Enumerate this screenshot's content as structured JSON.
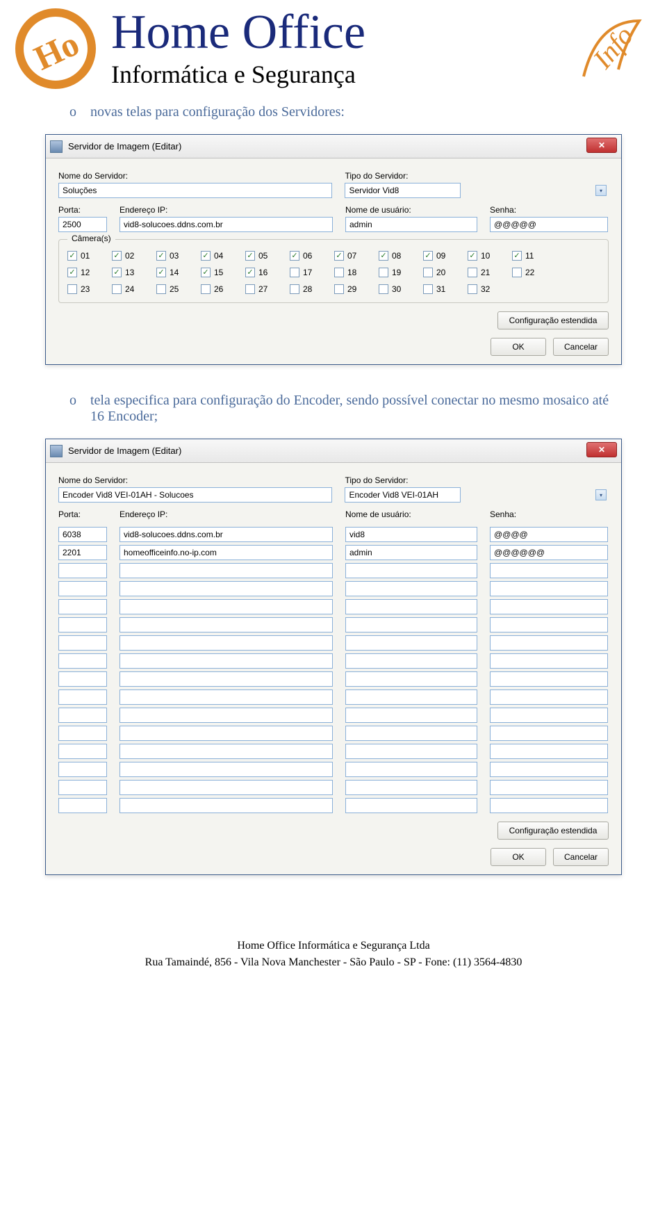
{
  "logo": {
    "main": "Home Office",
    "sub": "Informática e Segurança",
    "script": "Info",
    "circle_stroke": "#e08a2a",
    "circle_inner": "#ffffff",
    "main_color": "#1a2a7a"
  },
  "bullets": {
    "b1": "novas telas para configuração dos Servidores:",
    "b2": "tela especifica para configuração do Encoder, sendo possível conectar no mesmo mosaico até 16 Encoder;"
  },
  "dialog1": {
    "title": "Servidor de Imagem  (Editar)",
    "labels": {
      "nome": "Nome do Servidor:",
      "tipo": "Tipo do Servidor:",
      "porta": "Porta:",
      "ip": "Endereço IP:",
      "user": "Nome de usuário:",
      "senha": "Senha:",
      "cameras": "Câmera(s)"
    },
    "values": {
      "nome": "Soluções",
      "tipo": "Servidor Vid8",
      "porta": "2500",
      "ip": "vid8-solucoes.ddns.com.br",
      "user": "admin",
      "senha": "@@@@@"
    },
    "cameras": [
      {
        "n": "01",
        "c": true
      },
      {
        "n": "02",
        "c": true
      },
      {
        "n": "03",
        "c": true
      },
      {
        "n": "04",
        "c": true
      },
      {
        "n": "05",
        "c": true
      },
      {
        "n": "06",
        "c": true
      },
      {
        "n": "07",
        "c": true
      },
      {
        "n": "08",
        "c": true
      },
      {
        "n": "09",
        "c": true
      },
      {
        "n": "10",
        "c": true
      },
      {
        "n": "11",
        "c": true
      },
      {
        "n": "12",
        "c": true
      },
      {
        "n": "13",
        "c": true
      },
      {
        "n": "14",
        "c": true
      },
      {
        "n": "15",
        "c": true
      },
      {
        "n": "16",
        "c": true
      },
      {
        "n": "17",
        "c": false
      },
      {
        "n": "18",
        "c": false
      },
      {
        "n": "19",
        "c": false
      },
      {
        "n": "20",
        "c": false
      },
      {
        "n": "21",
        "c": false
      },
      {
        "n": "22",
        "c": false
      },
      {
        "n": "23",
        "c": false
      },
      {
        "n": "24",
        "c": false
      },
      {
        "n": "25",
        "c": false
      },
      {
        "n": "26",
        "c": false
      },
      {
        "n": "27",
        "c": false
      },
      {
        "n": "28",
        "c": false
      },
      {
        "n": "29",
        "c": false
      },
      {
        "n": "30",
        "c": false
      },
      {
        "n": "31",
        "c": false
      },
      {
        "n": "32",
        "c": false
      }
    ],
    "buttons": {
      "ext": "Configuração estendida",
      "ok": "OK",
      "cancel": "Cancelar"
    }
  },
  "dialog2": {
    "title": "Servidor de Imagem  (Editar)",
    "labels": {
      "nome": "Nome do Servidor:",
      "tipo": "Tipo do Servidor:",
      "porta": "Porta:",
      "ip": "Endereço IP:",
      "user": "Nome de usuário:",
      "senha": "Senha:"
    },
    "values": {
      "nome": "Encoder Vid8 VEI-01AH - Solucoes",
      "tipo": "Encoder Vid8 VEI-01AH"
    },
    "rows": [
      {
        "porta": "6038",
        "ip": "vid8-solucoes.ddns.com.br",
        "user": "vid8",
        "senha": "@@@@"
      },
      {
        "porta": "2201",
        "ip": "homeofficeinfo.no-ip.com",
        "user": "admin",
        "senha": "@@@@@@"
      },
      {
        "porta": "",
        "ip": "",
        "user": "",
        "senha": ""
      },
      {
        "porta": "",
        "ip": "",
        "user": "",
        "senha": ""
      },
      {
        "porta": "",
        "ip": "",
        "user": "",
        "senha": ""
      },
      {
        "porta": "",
        "ip": "",
        "user": "",
        "senha": ""
      },
      {
        "porta": "",
        "ip": "",
        "user": "",
        "senha": ""
      },
      {
        "porta": "",
        "ip": "",
        "user": "",
        "senha": ""
      },
      {
        "porta": "",
        "ip": "",
        "user": "",
        "senha": ""
      },
      {
        "porta": "",
        "ip": "",
        "user": "",
        "senha": ""
      },
      {
        "porta": "",
        "ip": "",
        "user": "",
        "senha": ""
      },
      {
        "porta": "",
        "ip": "",
        "user": "",
        "senha": ""
      },
      {
        "porta": "",
        "ip": "",
        "user": "",
        "senha": ""
      },
      {
        "porta": "",
        "ip": "",
        "user": "",
        "senha": ""
      },
      {
        "porta": "",
        "ip": "",
        "user": "",
        "senha": ""
      },
      {
        "porta": "",
        "ip": "",
        "user": "",
        "senha": ""
      }
    ],
    "buttons": {
      "ext": "Configuração estendida",
      "ok": "OK",
      "cancel": "Cancelar"
    }
  },
  "footer": {
    "line1": "Home Office Informática e Segurança Ltda",
    "line2": "Rua Tamaindé, 856  -  Vila Nova Manchester  -  São Paulo  -  SP  -  Fone: (11) 3564-4830"
  },
  "col_widths": {
    "nome": 395,
    "tipo": 380,
    "porta": 70,
    "ip": 255,
    "user": 160,
    "senha": 160
  },
  "colors": {
    "input_border": "#8ab0d8",
    "dialog_bg": "#f4f4f0",
    "bullet_text": "#4a6a9a"
  }
}
